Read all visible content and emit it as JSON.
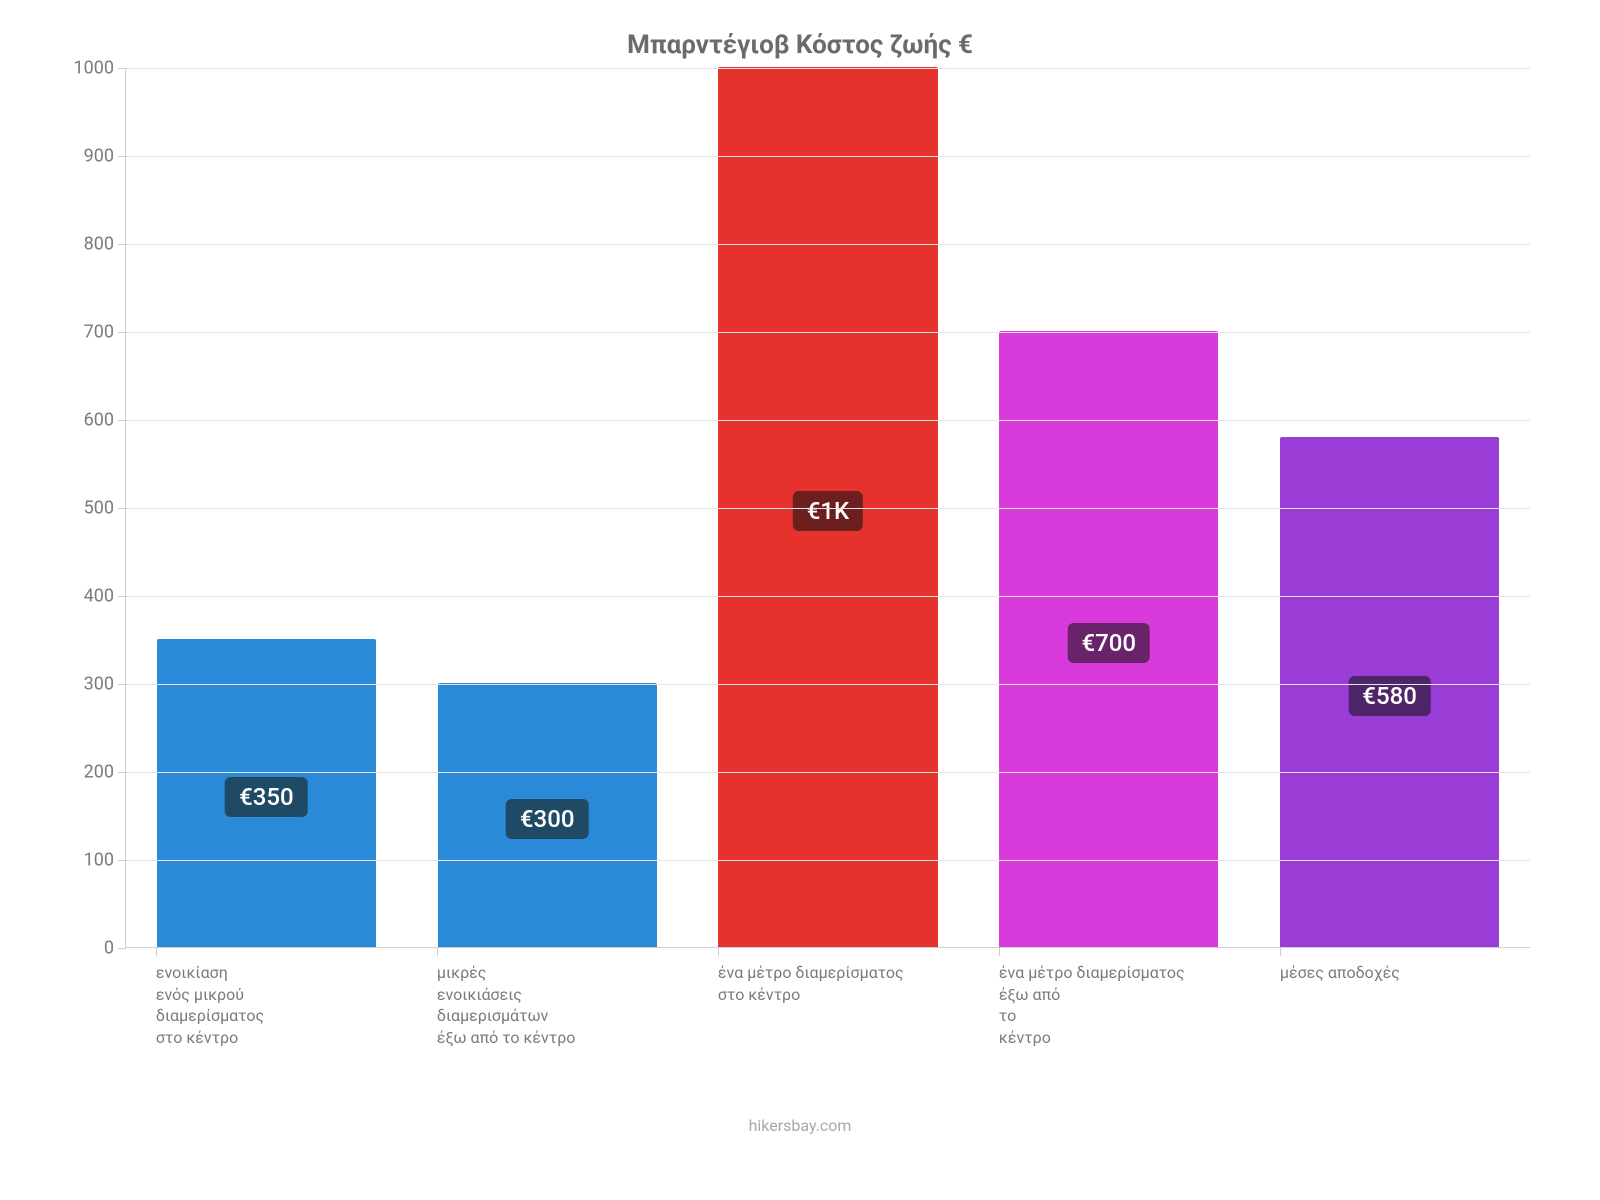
{
  "chart": {
    "type": "bar",
    "title": "Μπαρντέγιοβ Κόστος ζωής €",
    "title_fontsize": 26,
    "title_color": "#6b6b6b",
    "background_color": "#ffffff",
    "axis_color": "#cfcfcf",
    "grid_color": "#e5e5e5",
    "tick_label_color": "#7a7a7a",
    "tick_label_fontsize": 18,
    "x_label_color": "#7a7a7a",
    "x_label_fontsize": 16,
    "y": {
      "min": 0,
      "max": 1000,
      "tick_step": 100,
      "ticks": [
        0,
        100,
        200,
        300,
        400,
        500,
        600,
        700,
        800,
        900,
        1000
      ]
    },
    "bar_width_ratio": 0.78,
    "categories": [
      "ενοικίαση\nενός μικρού\nδιαμερίσματος\nστο κέντρο",
      "μικρές\nενοικιάσεις\nδιαμερισμάτων\nέξω από το κέντρο",
      "ένα μέτρο διαμερίσματος\nστο κέντρο",
      "ένα μέτρο διαμερίσματος\nέξω από\nτο\nκέντρο",
      "μέσες αποδοχές"
    ],
    "values": [
      350,
      300,
      1000,
      700,
      580
    ],
    "value_labels": [
      "€350",
      "€300",
      "€1K",
      "€700",
      "€580"
    ],
    "bar_colors": [
      "#2a8ad8",
      "#2a8ad8",
      "#e5322c",
      "#d93adc",
      "#9a3cd6"
    ],
    "label_bg_colors": [
      "#1e4a66",
      "#1e4a66",
      "#6b201f",
      "#68236a",
      "#4d2568"
    ],
    "label_text_color": "#ffffff",
    "label_fontsize": 24,
    "attribution": "hikersbay.com",
    "attribution_color": "#a8a8a8",
    "attribution_fontsize": 16
  }
}
